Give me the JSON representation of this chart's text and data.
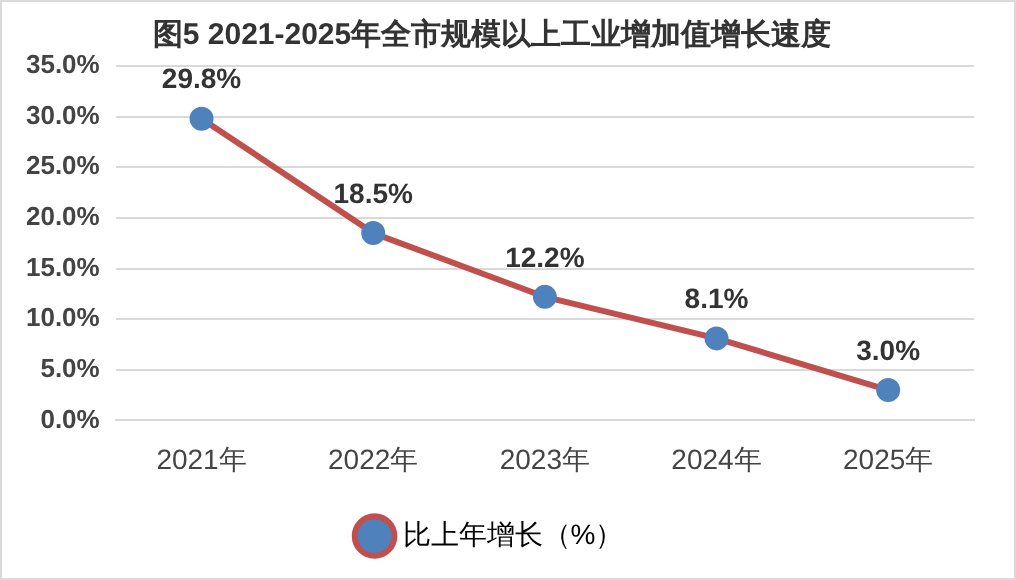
{
  "chart_data": {
    "type": "line",
    "title": "图5 2021-2025年全市规模以上工业增加值增长速度",
    "categories": [
      "2021年",
      "2022年",
      "2023年",
      "2024年",
      "2025年"
    ],
    "series": [
      {
        "name": "比上年增长（%）",
        "color": "#c0504d",
        "colors": [
          "#4f81bd",
          "#4f81bd",
          "#4f81bd",
          "#4f81bd",
          "#4f81bd"
        ],
        "values": [
          29.8,
          18.5,
          12.2,
          8.1,
          3.0
        ],
        "value_labels": [
          "29.8%",
          "18.5%",
          "12.2%",
          "8.1%",
          "3.0%"
        ]
      }
    ],
    "ylim": [
      0,
      35
    ],
    "yticks": [
      {
        "value": 0,
        "label": "0.0%"
      },
      {
        "value": 5,
        "label": "5.0%"
      },
      {
        "value": 10,
        "label": "10.0%"
      },
      {
        "value": 15,
        "label": "15.0%"
      },
      {
        "value": 20,
        "label": "20.0%"
      },
      {
        "value": 25,
        "label": "25.0%"
      },
      {
        "value": 30,
        "label": "30.0%"
      },
      {
        "value": 35,
        "label": "35.0%"
      }
    ],
    "grid": "y",
    "legend": "bottom",
    "marker": "circle",
    "line_style": "solid"
  }
}
